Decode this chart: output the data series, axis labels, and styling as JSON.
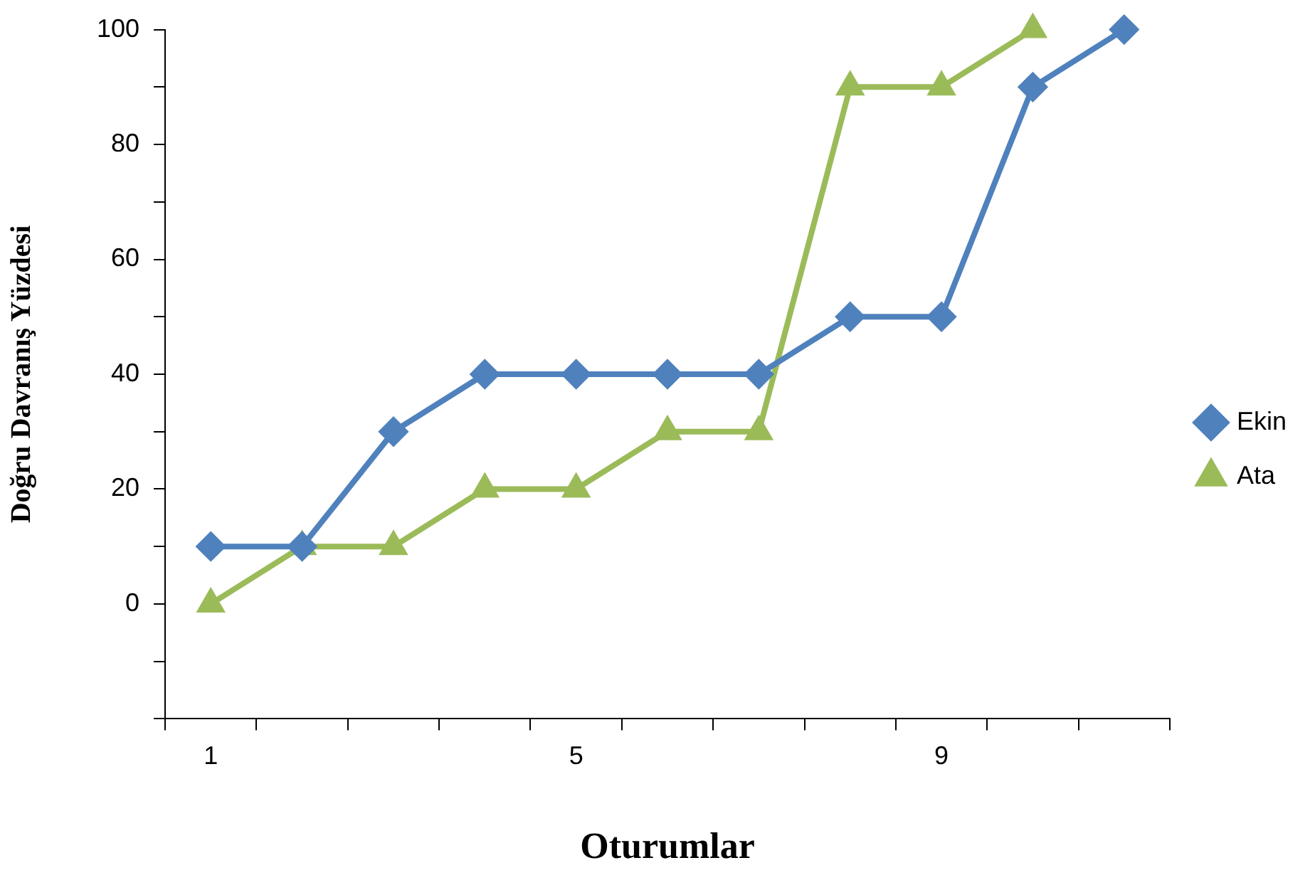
{
  "chart_data": {
    "type": "line",
    "xlabel": "Oturumlar",
    "ylabel": "Doğru Davranış Yüzdesi",
    "categories": [
      "1",
      null,
      null,
      null,
      "5",
      null,
      null,
      null,
      "9",
      null,
      null
    ],
    "series": [
      {
        "name": "Ekin",
        "color": "#4f81bd",
        "marker": "diamond",
        "values": [
          10,
          10,
          30,
          40,
          40,
          40,
          40,
          50,
          50,
          90,
          100
        ]
      },
      {
        "name": "Ata",
        "color": "#9bbb59",
        "marker": "triangle",
        "values": [
          0,
          10,
          10,
          20,
          20,
          30,
          30,
          90,
          90,
          100,
          null
        ]
      }
    ],
    "ylim": [
      -20,
      100
    ],
    "yticks": [
      {
        "value": -20,
        "label": null
      },
      {
        "value": -10,
        "label": null
      },
      0,
      {
        "value": 10,
        "label": null
      },
      20,
      {
        "value": 30,
        "label": null
      },
      40,
      {
        "value": 50,
        "label": null
      },
      60,
      {
        "value": 70,
        "label": null
      },
      80,
      {
        "value": 90,
        "label": null
      },
      100
    ],
    "grid": false,
    "legend": "right",
    "line_style": "solid"
  }
}
